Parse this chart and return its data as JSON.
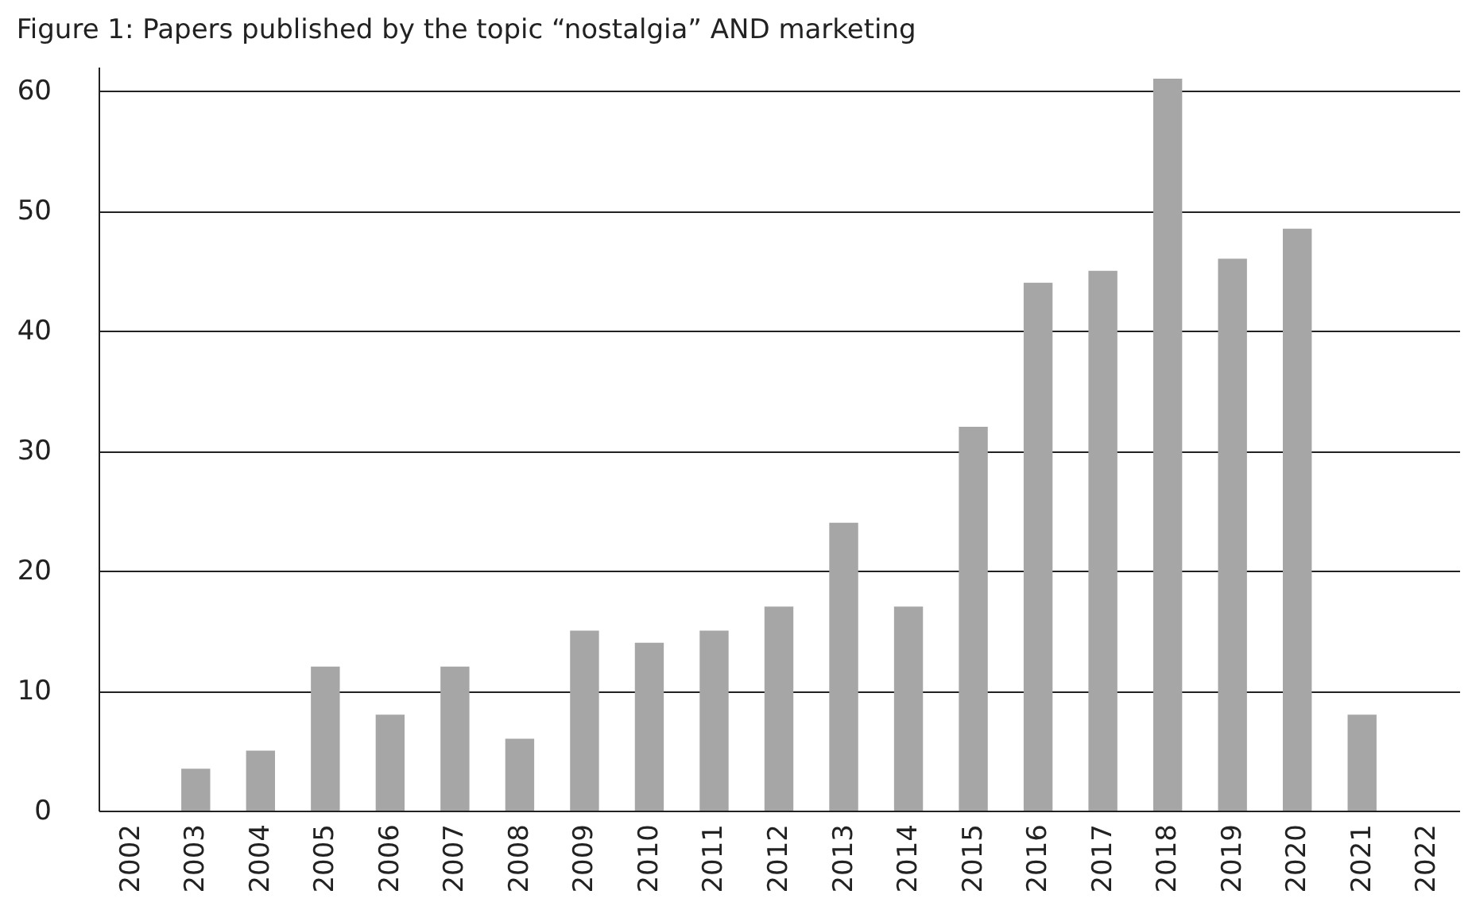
{
  "chart_data": {
    "type": "bar",
    "title": "Figure 1: Papers published by the topic “nostalgia” AND marketing",
    "categories": [
      "2002",
      "2003",
      "2004",
      "2005",
      "2006",
      "2007",
      "2008",
      "2009",
      "2010",
      "2011",
      "2012",
      "2013",
      "2014",
      "2015",
      "2016",
      "2017",
      "2018",
      "2019",
      "2020",
      "2021",
      "2022"
    ],
    "values": [
      0,
      3.5,
      5,
      12,
      8,
      12,
      6,
      15,
      14,
      15,
      17,
      24,
      17,
      32,
      44,
      45,
      61,
      46,
      48.5,
      8,
      0
    ],
    "color": "#a6a6a6",
    "ylim": [
      0,
      62
    ],
    "yticks": [
      0,
      10,
      20,
      30,
      40,
      50,
      60
    ],
    "grid": "y"
  }
}
